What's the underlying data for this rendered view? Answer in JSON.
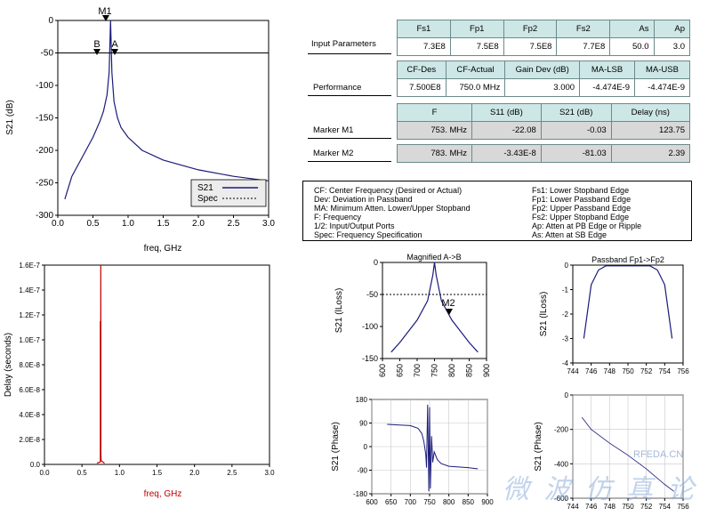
{
  "colors": {
    "trace": "#1a1a7a",
    "delay": "#c00000",
    "spec": "#000000",
    "header_bg": "#cde6e6",
    "row_bg": "#d8d8d8"
  },
  "tables": {
    "input_parameters": {
      "label": "Input Parameters",
      "headers": [
        "Fs1",
        "Fp1",
        "Fp2",
        "Fs2",
        "As",
        "Ap"
      ],
      "values": [
        "7.3E8",
        "7.5E8",
        "7.5E8",
        "7.7E8",
        "50.0",
        "3.0"
      ]
    },
    "performance": {
      "label": "Performance",
      "headers": [
        "CF-Des",
        "CF-Actual",
        "Gain Dev (dB)",
        "MA-LSB",
        "MA-USB"
      ],
      "values": [
        "7.500E8",
        "750.0 MHz",
        "3.000",
        "-4.474E-9",
        "-4.474E-9"
      ]
    },
    "markers": {
      "headers": [
        "F",
        "S11 (dB)",
        "S21 (dB)",
        "Delay (ns)"
      ],
      "rows": [
        {
          "label": "Marker M1",
          "values": [
            "753. MHz",
            "-22.08",
            "-0.03",
            "123.75"
          ]
        },
        {
          "label": "Marker M2",
          "values": [
            "783. MHz",
            "-3.43E-8",
            "-81.03",
            "2.39"
          ]
        }
      ]
    }
  },
  "legend": {
    "left": [
      "CF: Center Frequency (Desired or Actual)",
      "Dev: Deviation in Passband",
      "MA: Minimum Atten. Lower/Upper Stopband",
      "F:  Frequency",
      "1/2:  Input/Output Ports",
      "Spec: Frequency Specification"
    ],
    "right": [
      "Fs1: Lower Stopband Edge",
      "Fp1: Lower Passband Edge",
      "Fp2: Upper Passband Edge",
      "Fs2: Upper Stopband Edge",
      "Ap:  Atten at PB Edge or Ripple",
      "As:  Atten at SB Edge"
    ]
  },
  "watermark": {
    "text": "微 波 仿 真 论 坛",
    "site": "RFEDA.CN"
  },
  "chart_data": [
    {
      "id": "s21_main",
      "type": "line",
      "xlabel": "freq, GHz",
      "ylabel": "S21 (dB)",
      "xlim": [
        0,
        3.0
      ],
      "ylim": [
        -300,
        0
      ],
      "xticks": [
        "0.0",
        "0.5",
        "1.0",
        "1.5",
        "2.0",
        "2.5",
        "3.0"
      ],
      "yticks": [
        "0",
        "-50",
        "-100",
        "-150",
        "-200",
        "-250",
        "-300"
      ],
      "legend": [
        "S21",
        "Spec"
      ],
      "markers": [
        "M1",
        "B",
        "A"
      ],
      "series": [
        {
          "name": "S21",
          "x": [
            0.1,
            0.2,
            0.3,
            0.4,
            0.5,
            0.6,
            0.65,
            0.7,
            0.73,
            0.75,
            0.77,
            0.8,
            0.85,
            0.9,
            1.0,
            1.2,
            1.5,
            2.0,
            2.5,
            3.0
          ],
          "y": [
            -275,
            -240,
            -220,
            -200,
            -180,
            -155,
            -140,
            -115,
            -80,
            0,
            -80,
            -125,
            -150,
            -165,
            -180,
            -200,
            -215,
            -230,
            -240,
            -247
          ]
        },
        {
          "name": "Spec",
          "x": [
            0.0,
            3.0
          ],
          "y": [
            -50,
            -50
          ]
        }
      ]
    },
    {
      "id": "delay",
      "type": "line",
      "xlabel": "freq, GHz",
      "ylabel": "Delay (seconds)",
      "xlim": [
        0,
        3.0
      ],
      "ylim": [
        0,
        1.6e-07
      ],
      "xticks": [
        "0.0",
        "0.5",
        "1.0",
        "1.5",
        "2.0",
        "2.5",
        "3.0"
      ],
      "yticks": [
        "0.0",
        "2.0E-8",
        "4.0E-8",
        "6.0E-8",
        "8.0E-8",
        "1.0E-7",
        "1.2E-7",
        "1.4E-7",
        "1.6E-7"
      ],
      "series": [
        {
          "name": "Delay",
          "x": [
            0.7,
            0.745,
            0.745,
            0.748,
            0.75,
            0.752,
            0.752,
            0.755,
            0.8
          ],
          "y": [
            1e-09,
            2e-09,
            1.15e-07,
            5e-09,
            1.6e-07,
            9.5e-08,
            9e-09,
            3e-09,
            1e-09
          ]
        }
      ]
    },
    {
      "id": "magnified",
      "type": "line",
      "title": "Magnified A->B",
      "ylabel": "S21 (lLoss)",
      "xlim": [
        600,
        900
      ],
      "ylim": [
        -150,
        0
      ],
      "xticks": [
        "600",
        "650",
        "700",
        "750",
        "800",
        "850",
        "900"
      ],
      "yticks": [
        "0",
        "-50",
        "-100",
        "-150"
      ],
      "markers": [
        "M2"
      ],
      "series": [
        {
          "name": "S21",
          "x": [
            625,
            650,
            700,
            730,
            745,
            750,
            755,
            770,
            800,
            850,
            875
          ],
          "y": [
            -140,
            -125,
            -90,
            -60,
            -20,
            0,
            -20,
            -60,
            -90,
            -125,
            -140
          ]
        },
        {
          "name": "Spec",
          "x": [
            600,
            900
          ],
          "y": [
            -50,
            -50
          ]
        }
      ]
    },
    {
      "id": "passband",
      "type": "line",
      "title": "Passband Fp1->Fp2",
      "ylabel": "S21 (lLoss)",
      "xlim": [
        744,
        756
      ],
      "ylim": [
        -4,
        0
      ],
      "xticks": [
        "744",
        "746",
        "748",
        "750",
        "752",
        "754",
        "756"
      ],
      "yticks": [
        "0",
        "-1",
        "-2",
        "-3",
        "-4"
      ],
      "series": [
        {
          "name": "S21",
          "x": [
            745.2,
            746.0,
            746.8,
            747.6,
            752.4,
            753.2,
            754.0,
            754.8
          ],
          "y": [
            -3.0,
            -0.8,
            -0.2,
            -0.03,
            -0.03,
            -0.2,
            -0.8,
            -3.0
          ]
        }
      ]
    },
    {
      "id": "phase",
      "type": "line",
      "ylabel": "S21 (Phase)",
      "xlim": [
        600,
        900
      ],
      "ylim": [
        -180,
        180
      ],
      "xticks": [
        "600",
        "650",
        "700",
        "750",
        "800",
        "850",
        "900"
      ],
      "yticks": [
        "180",
        "90",
        "0",
        "-90",
        "-180"
      ],
      "series": [
        {
          "name": "S21",
          "x": [
            640,
            700,
            720,
            730,
            735,
            740,
            742,
            745,
            748,
            750,
            752,
            755,
            758,
            762,
            770,
            780,
            800,
            850,
            875
          ],
          "y": [
            85,
            80,
            70,
            50,
            20,
            -30,
            -80,
            160,
            -170,
            150,
            -160,
            40,
            -60,
            -20,
            -50,
            -65,
            -75,
            -80,
            -85
          ]
        }
      ]
    },
    {
      "id": "passband_phase",
      "type": "line",
      "ylabel": "S21 (Phase)",
      "xlim": [
        744,
        756
      ],
      "ylim": [
        -600,
        0
      ],
      "xticks": [
        "744",
        "746",
        "748",
        "750",
        "752",
        "754",
        "756"
      ],
      "yticks": [
        "0",
        "-200",
        "-400",
        "-600"
      ],
      "series": [
        {
          "name": "S21",
          "x": [
            745.0,
            746.0,
            748.0,
            750.0,
            752.0,
            754.0,
            755.0
          ],
          "y": [
            -130,
            -200,
            -280,
            -350,
            -430,
            -520,
            -560
          ]
        }
      ]
    }
  ]
}
